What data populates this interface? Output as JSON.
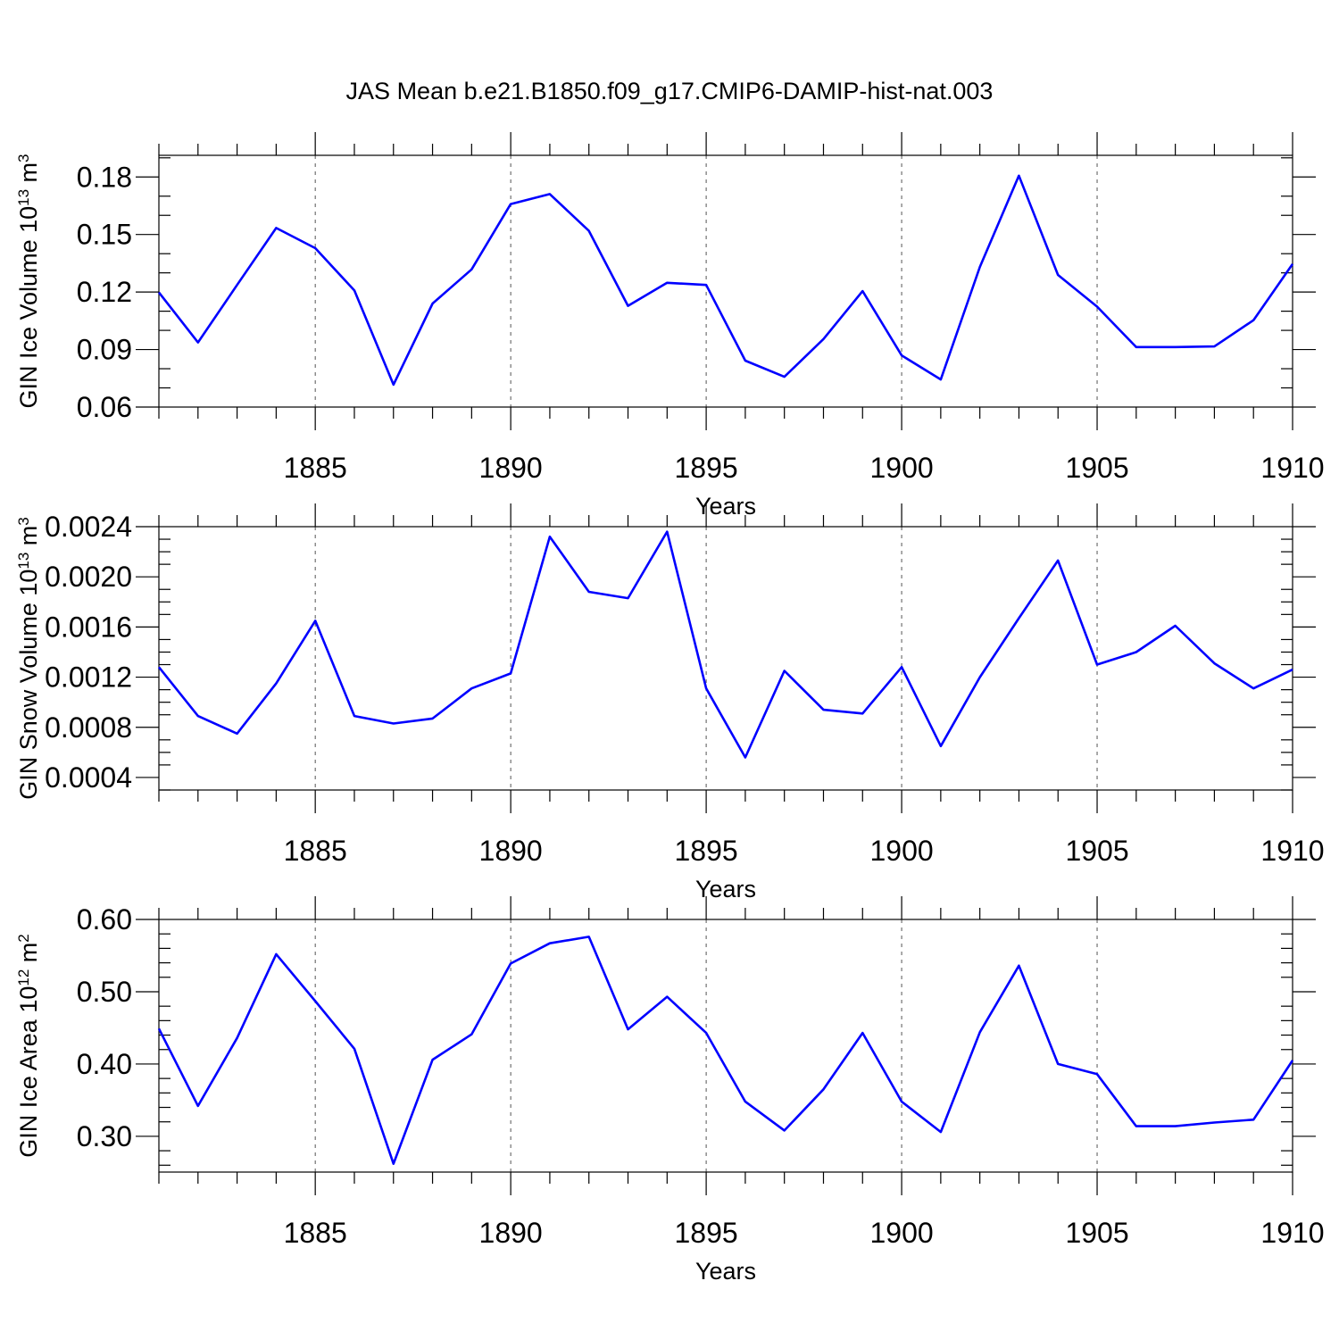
{
  "title": "JAS Mean b.e21.B1850.f09_g17.CMIP6-DAMIP-hist-nat.003",
  "chart_data": [
    {
      "type": "line",
      "ylabel_main": "GIN Ice Volume 10",
      "ylabel_exp": "13",
      "ylabel_unit": " m",
      "ylabel_unit_exp": "3",
      "xlabel": "Years",
      "xlim": [
        1881,
        1910
      ],
      "ylim": [
        0.06,
        0.1913
      ],
      "y_ticks": [
        0.06,
        0.09,
        0.12,
        0.15,
        0.18
      ],
      "y_tick_labels": [
        "0.06",
        "0.09",
        "0.12",
        "0.15",
        "0.18"
      ],
      "y_minor_step": 0.01,
      "x_ticks": [
        1885,
        1890,
        1895,
        1900,
        1905,
        1910
      ],
      "x_tick_labels": [
        "1885",
        "1890",
        "1895",
        "1900",
        "1905",
        "1910"
      ],
      "grid": "vertical-dashed",
      "series": [
        {
          "color": "#0000ff",
          "x": [
            1881,
            1882,
            1883,
            1884,
            1885,
            1886,
            1887,
            1888,
            1889,
            1890,
            1891,
            1892,
            1893,
            1894,
            1895,
            1896,
            1897,
            1898,
            1899,
            1900,
            1901,
            1902,
            1903,
            1904,
            1905,
            1906,
            1907,
            1908,
            1909,
            1910
          ],
          "values": [
            0.1198,
            0.0937,
            0.1237,
            0.1534,
            0.1429,
            0.1208,
            0.0717,
            0.114,
            0.1318,
            0.1659,
            0.1711,
            0.1519,
            0.1128,
            0.1248,
            0.1237,
            0.0842,
            0.0758,
            0.0955,
            0.1205,
            0.0869,
            0.0744,
            0.1331,
            0.1807,
            0.1289,
            0.1124,
            0.0913,
            0.0913,
            0.0916,
            0.1053,
            0.1346
          ]
        }
      ]
    },
    {
      "type": "line",
      "ylabel_main": "GIN Snow Volume 10",
      "ylabel_exp": "13",
      "ylabel_unit": " m",
      "ylabel_unit_exp": "3",
      "xlabel": "Years",
      "xlim": [
        1881,
        1910
      ],
      "ylim": [
        0.0003,
        0.0024
      ],
      "y_ticks": [
        0.0004,
        0.0008,
        0.0012,
        0.0016,
        0.002,
        0.0024
      ],
      "y_tick_labels": [
        "0.0004",
        "0.0008",
        "0.0012",
        "0.0016",
        "0.0020",
        "0.0024"
      ],
      "y_minor_step": 0.0001,
      "x_ticks": [
        1885,
        1890,
        1895,
        1900,
        1905,
        1910
      ],
      "x_tick_labels": [
        "1885",
        "1890",
        "1895",
        "1900",
        "1905",
        "1910"
      ],
      "grid": "vertical-dashed",
      "series": [
        {
          "color": "#0000ff",
          "x": [
            1881,
            1882,
            1883,
            1884,
            1885,
            1886,
            1887,
            1888,
            1889,
            1890,
            1891,
            1892,
            1893,
            1894,
            1895,
            1896,
            1897,
            1898,
            1899,
            1900,
            1901,
            1902,
            1903,
            1904,
            1905,
            1906,
            1907,
            1908,
            1909,
            1910
          ],
          "values": [
            0.00128,
            0.00089,
            0.00075,
            0.00115,
            0.00165,
            0.00089,
            0.00083,
            0.00087,
            0.00111,
            0.00123,
            0.00232,
            0.00188,
            0.00183,
            0.00236,
            0.00111,
            0.00056,
            0.00125,
            0.00094,
            0.00091,
            0.00128,
            0.00065,
            0.0012,
            0.00167,
            0.00213,
            0.0013,
            0.0014,
            0.00161,
            0.00131,
            0.00111,
            0.00126
          ]
        }
      ]
    },
    {
      "type": "line",
      "ylabel_main": "GIN Ice Area 10",
      "ylabel_exp": "12",
      "ylabel_unit": " m",
      "ylabel_unit_exp": "2",
      "xlabel": "Years",
      "xlim": [
        1881,
        1910
      ],
      "ylim": [
        0.2505,
        0.6
      ],
      "y_ticks": [
        0.3,
        0.4,
        0.5,
        0.6
      ],
      "y_tick_labels": [
        "0.30",
        "0.40",
        "0.50",
        "0.60"
      ],
      "y_minor_step": 0.02,
      "x_ticks": [
        1885,
        1890,
        1895,
        1900,
        1905,
        1910
      ],
      "x_tick_labels": [
        "1885",
        "1890",
        "1895",
        "1900",
        "1905",
        "1910"
      ],
      "grid": "vertical-dashed",
      "series": [
        {
          "color": "#0000ff",
          "x": [
            1881,
            1882,
            1883,
            1884,
            1885,
            1886,
            1887,
            1888,
            1889,
            1890,
            1891,
            1892,
            1893,
            1894,
            1895,
            1896,
            1897,
            1898,
            1899,
            1900,
            1901,
            1902,
            1903,
            1904,
            1905,
            1906,
            1907,
            1908,
            1909,
            1910
          ],
          "values": [
            0.449,
            0.342,
            0.436,
            0.552,
            0.487,
            0.421,
            0.262,
            0.406,
            0.441,
            0.539,
            0.567,
            0.576,
            0.448,
            0.493,
            0.443,
            0.348,
            0.308,
            0.365,
            0.443,
            0.348,
            0.306,
            0.444,
            0.536,
            0.4,
            0.386,
            0.314,
            0.314,
            0.319,
            0.323,
            0.405
          ]
        }
      ]
    }
  ]
}
